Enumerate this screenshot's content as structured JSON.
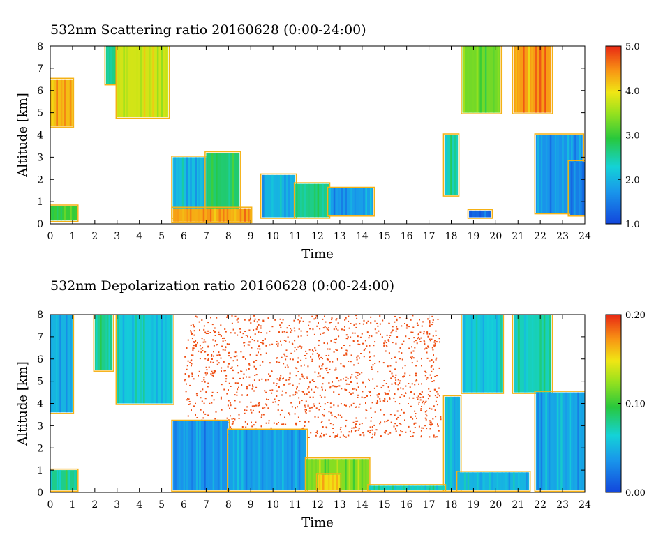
{
  "chart_data": [
    {
      "type": "heatmap",
      "title": "532nm Scattering ratio  20160628 (0:00-24:00)",
      "xlabel": "Time",
      "ylabel": "Altitude [km]",
      "xlim": [
        0,
        24
      ],
      "ylim": [
        0,
        8
      ],
      "x_ticks": [
        "0",
        "1",
        "2",
        "3",
        "4",
        "5",
        "6",
        "7",
        "8",
        "9",
        "10",
        "11",
        "12",
        "13",
        "14",
        "15",
        "16",
        "17",
        "18",
        "19",
        "20",
        "21",
        "22",
        "23",
        "24"
      ],
      "y_ticks": [
        "0",
        "1",
        "2",
        "3",
        "4",
        "5",
        "6",
        "7",
        "8"
      ],
      "colorbar": {
        "min": 1.0,
        "max": 5.0,
        "ticks": [
          "1.0",
          "2.0",
          "3.0",
          "4.0",
          "5.0"
        ]
      },
      "features": [
        {
          "t0": 0.0,
          "t1": 1.0,
          "z0": 4.4,
          "z1": 6.5,
          "v": 4.2
        },
        {
          "t0": 0.0,
          "t1": 1.2,
          "z0": 0.15,
          "z1": 0.8,
          "v": 3.0
        },
        {
          "t0": 2.5,
          "t1": 3.0,
          "z0": 6.3,
          "z1": 8.0,
          "v": 2.6
        },
        {
          "t0": 3.0,
          "t1": 5.3,
          "z0": 4.8,
          "z1": 8.0,
          "v": 3.8
        },
        {
          "t0": 5.5,
          "t1": 7.0,
          "z0": 0.3,
          "z1": 3.0,
          "v": 2.1
        },
        {
          "t0": 7.0,
          "t1": 8.5,
          "z0": 0.5,
          "z1": 3.2,
          "v": 2.7
        },
        {
          "t0": 5.5,
          "t1": 9.0,
          "z0": 0.1,
          "z1": 0.7,
          "v": 4.3
        },
        {
          "t0": 9.5,
          "t1": 11.0,
          "z0": 0.3,
          "z1": 2.2,
          "v": 2.0
        },
        {
          "t0": 11.0,
          "t1": 12.5,
          "z0": 0.3,
          "z1": 1.8,
          "v": 2.6
        },
        {
          "t0": 12.5,
          "t1": 14.5,
          "z0": 0.4,
          "z1": 1.6,
          "v": 1.8
        },
        {
          "t0": 17.7,
          "t1": 18.3,
          "z0": 1.3,
          "z1": 4.0,
          "v": 2.4
        },
        {
          "t0": 18.5,
          "t1": 20.2,
          "z0": 5.0,
          "z1": 8.0,
          "v": 3.3
        },
        {
          "t0": 18.8,
          "t1": 19.8,
          "z0": 0.3,
          "z1": 0.6,
          "v": 1.3
        },
        {
          "t0": 20.8,
          "t1": 22.5,
          "z0": 5.0,
          "z1": 8.0,
          "v": 4.4
        },
        {
          "t0": 21.8,
          "t1": 23.9,
          "z0": 0.5,
          "z1": 4.0,
          "v": 1.7
        },
        {
          "t0": 23.3,
          "t1": 24.0,
          "z0": 0.4,
          "z1": 2.8,
          "v": 1.5
        }
      ]
    },
    {
      "type": "heatmap",
      "title": "532nm Depolarization ratio  20160628 (0:00-24:00)",
      "xlabel": "Time",
      "ylabel": "Altitude [km]",
      "xlim": [
        0,
        24
      ],
      "ylim": [
        0,
        8
      ],
      "x_ticks": [
        "0",
        "1",
        "2",
        "3",
        "4",
        "5",
        "6",
        "7",
        "8",
        "9",
        "10",
        "11",
        "12",
        "13",
        "14",
        "15",
        "16",
        "17",
        "18",
        "19",
        "20",
        "21",
        "22",
        "23",
        "24"
      ],
      "y_ticks": [
        "0",
        "1",
        "2",
        "3",
        "4",
        "5",
        "6",
        "7",
        "8"
      ],
      "colorbar": {
        "min": 0.0,
        "max": 0.2,
        "ticks": [
          "0.00",
          "0.10",
          "0.20"
        ]
      },
      "features": [
        {
          "t0": 0.0,
          "t1": 1.0,
          "z0": 3.6,
          "z1": 8.0,
          "v": 0.05
        },
        {
          "t0": 0.0,
          "t1": 1.2,
          "z0": 0.1,
          "z1": 1.0,
          "v": 0.08
        },
        {
          "t0": 2.0,
          "t1": 2.8,
          "z0": 5.5,
          "z1": 8.0,
          "v": 0.08
        },
        {
          "t0": 3.0,
          "t1": 5.5,
          "z0": 4.0,
          "z1": 8.0,
          "v": 0.06
        },
        {
          "t0": 5.5,
          "t1": 8.0,
          "z0": 0.1,
          "z1": 3.2,
          "v": 0.035
        },
        {
          "t0": 8.0,
          "t1": 11.5,
          "z0": 0.1,
          "z1": 2.8,
          "v": 0.04
        },
        {
          "t0": 11.5,
          "t1": 14.3,
          "z0": 0.1,
          "z1": 1.5,
          "v": 0.12
        },
        {
          "t0": 12.0,
          "t1": 13.0,
          "z0": 0.1,
          "z1": 0.8,
          "v": 0.15
        },
        {
          "t0": 17.7,
          "t1": 18.4,
          "z0": 0.1,
          "z1": 4.3,
          "v": 0.05
        },
        {
          "t0": 18.5,
          "t1": 20.3,
          "z0": 4.5,
          "z1": 8.0,
          "v": 0.06
        },
        {
          "t0": 20.8,
          "t1": 22.5,
          "z0": 4.5,
          "z1": 8.0,
          "v": 0.07
        },
        {
          "t0": 21.8,
          "t1": 24.0,
          "z0": 0.1,
          "z1": 4.5,
          "v": 0.045
        },
        {
          "t0": 18.3,
          "t1": 21.5,
          "z0": 0.1,
          "z1": 0.9,
          "v": 0.05
        },
        {
          "t0": 14.3,
          "t1": 17.7,
          "z0": 0.1,
          "z1": 0.3,
          "v": 0.07
        }
      ],
      "speckle": {
        "t0": 6.0,
        "t1": 17.5,
        "z0": 2.5,
        "z1": 8.0,
        "v": 0.19
      }
    }
  ]
}
